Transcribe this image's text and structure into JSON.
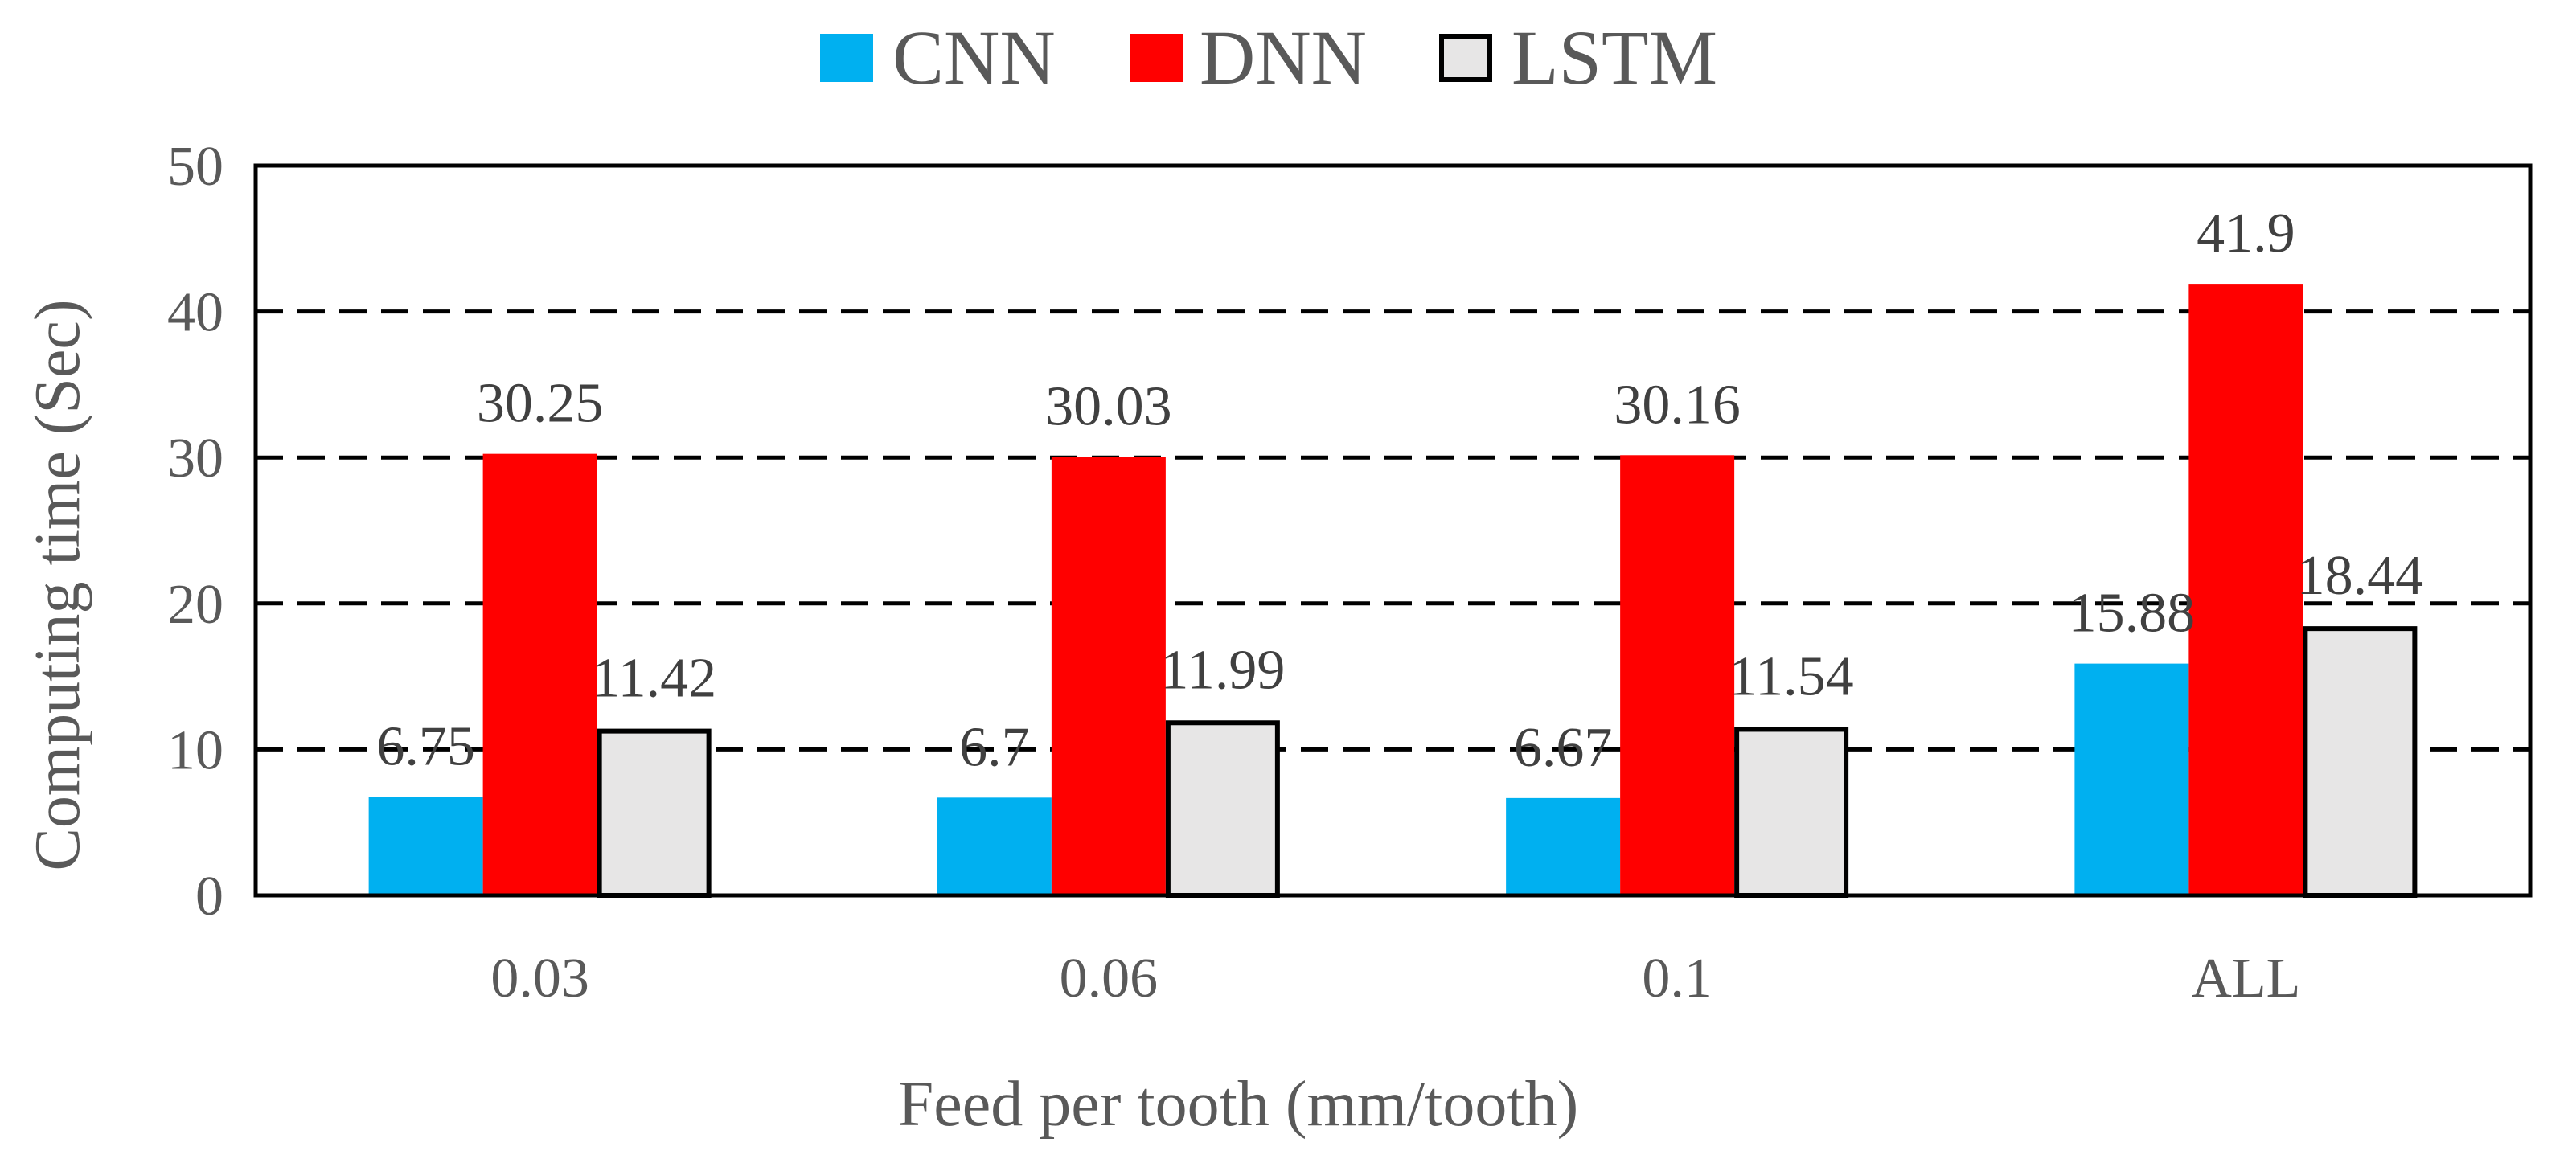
{
  "chart_data": {
    "type": "bar",
    "title": "",
    "xlabel": "Feed per tooth (mm/tooth)",
    "ylabel": "Computing time (Sec)",
    "ylim": [
      0,
      50
    ],
    "yticks": [
      0,
      10,
      20,
      30,
      40,
      50
    ],
    "grid": "dashed horizontal",
    "legend_position": "top-center",
    "categories": [
      "0.03",
      "0.06",
      "0.1",
      "ALL"
    ],
    "series": [
      {
        "name": "CNN",
        "color": "#00B0F0",
        "values": [
          6.75,
          6.7,
          6.67,
          15.88
        ],
        "labels": [
          "6.75",
          "6.7",
          "6.67",
          "15.88"
        ]
      },
      {
        "name": "DNN",
        "color": "#FF0000",
        "values": [
          30.25,
          30.03,
          30.16,
          41.9
        ],
        "labels": [
          "30.25",
          "30.03",
          "30.16",
          "41.9"
        ]
      },
      {
        "name": "LSTM",
        "color": "#E7E6E6",
        "outline": "#000000",
        "values": [
          11.42,
          11.99,
          11.54,
          18.44
        ],
        "labels": [
          "11.42",
          "11.99",
          "11.54",
          "18.44"
        ]
      }
    ]
  }
}
